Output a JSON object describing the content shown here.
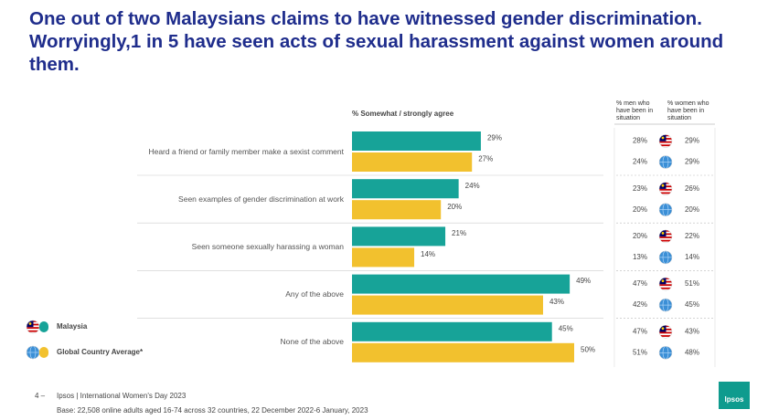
{
  "header": {
    "title": "One out of two Malaysians claims to have witnessed gender discrimination. Worryingly,1 in 5 have seen acts of sexual harassment against women around them."
  },
  "chart_data": {
    "type": "bar",
    "orientation": "horizontal",
    "x_label": "% Somewhat  / strongly agree",
    "categories": [
      "Heard a friend or family member make a sexist comment",
      "Seen examples of gender discrimination at work",
      "Seen someone sexually harassing a woman",
      "Any of the above",
      "None of the above"
    ],
    "series": [
      {
        "name": "Malaysia",
        "color": "#17a398",
        "values": [
          29,
          24,
          21,
          49,
          45
        ],
        "value_labels": [
          "29%",
          "24%",
          "21%",
          "49%",
          "45%"
        ]
      },
      {
        "name": "Global Country  Average*",
        "color": "#f2c12e",
        "values": [
          27,
          20,
          14,
          43,
          50
        ],
        "value_labels": [
          "27%",
          "20%",
          "14%",
          "43%",
          "50%"
        ]
      }
    ],
    "xlim": [
      0,
      50
    ]
  },
  "side_table": {
    "columns": [
      "% men who have been in situation",
      "% women who have been in situation"
    ],
    "rows": [
      [
        "28%",
        "29%"
      ],
      [
        "24%",
        "29%"
      ],
      [
        "23%",
        "26%"
      ],
      [
        "20%",
        "20%"
      ],
      [
        "20%",
        "22%"
      ],
      [
        "13%",
        "14%"
      ],
      [
        "47%",
        "51%"
      ],
      [
        "42%",
        "45%"
      ],
      [
        "47%",
        "43%"
      ],
      [
        "51%",
        "48%"
      ]
    ]
  },
  "footer": {
    "page": "4 –",
    "source": "Ipsos | International Women's Day 2023",
    "base": "Base: 22,508 online adults aged 16-74 across 32 countries, 22 December 2022-6 January, 2023"
  },
  "logo": "Ipsos"
}
